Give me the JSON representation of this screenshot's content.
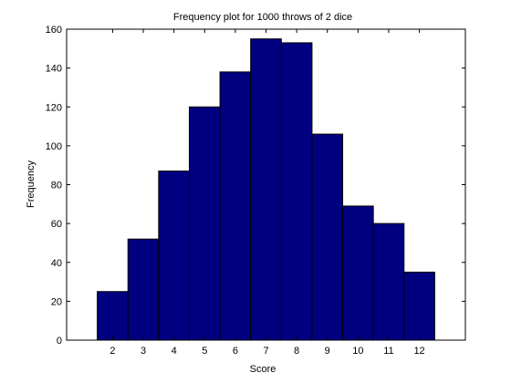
{
  "chart_data": {
    "type": "bar",
    "title": "Frequency plot for 1000 throws of 2 dice",
    "xlabel": "Score",
    "ylabel": "Frequency",
    "categories": [
      "2",
      "3",
      "4",
      "5",
      "6",
      "7",
      "8",
      "9",
      "10",
      "11",
      "12"
    ],
    "x": [
      2,
      3,
      4,
      5,
      6,
      7,
      8,
      9,
      10,
      11,
      12
    ],
    "values": [
      25,
      52,
      87,
      120,
      138,
      155,
      153,
      106,
      69,
      60,
      35
    ],
    "xlim": [
      0.5,
      13.5
    ],
    "ylim": [
      0,
      160
    ],
    "yticks": [
      0,
      20,
      40,
      60,
      80,
      100,
      120,
      140,
      160
    ],
    "bar_color": "#000080",
    "grid": false,
    "legend": "none"
  }
}
